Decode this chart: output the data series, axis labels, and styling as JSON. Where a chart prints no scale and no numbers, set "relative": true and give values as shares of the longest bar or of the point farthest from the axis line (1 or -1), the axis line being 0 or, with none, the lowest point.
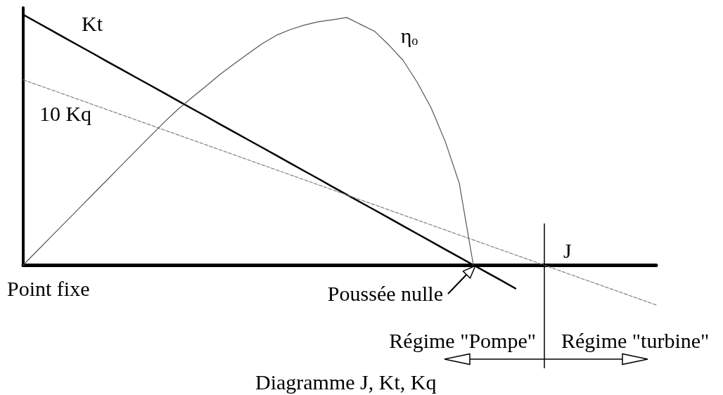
{
  "chart_data": {
    "type": "line",
    "title": "Diagramme J, Kt, Kq",
    "xlabel": "J",
    "relative": true,
    "categories": [
      null,
      null,
      null,
      null,
      null,
      null,
      null,
      null,
      null,
      null,
      null,
      null,
      null,
      null,
      null,
      null,
      null,
      null,
      null,
      null,
      null,
      null,
      null,
      null,
      null,
      null,
      null,
      null,
      null,
      null,
      null,
      null,
      null,
      null,
      null,
      null,
      null,
      null,
      null,
      null,
      null,
      null,
      null,
      null,
      null,
      null
    ],
    "series": [
      {
        "name": "Kt",
        "color": "#000000",
        "values": [
          1,
          0.969,
          0.938,
          0.906,
          0.875,
          0.844,
          0.812,
          0.781,
          0.75,
          0.719,
          0.688,
          0.656,
          0.625,
          0.594,
          0.562,
          0.531,
          0.5,
          0.469,
          0.438,
          0.406,
          0.375,
          0.344,
          0.312,
          0.281,
          0.25,
          0.219,
          0.188,
          0.156,
          0.125,
          0.094,
          0.062,
          0.031,
          0,
          -0.031,
          -0.062,
          -0.094,
          null,
          null,
          null,
          null,
          null,
          null,
          null,
          null,
          null,
          null
        ]
      },
      {
        "name": "10 Kq",
        "color": "#808080",
        "line_style": "dashed",
        "values": [
          0.74,
          0.72,
          0.7,
          0.68,
          0.66,
          0.64,
          0.62,
          0.6,
          0.58,
          0.56,
          0.54,
          0.52,
          0.5,
          0.48,
          0.46,
          0.44,
          0.42,
          0.4,
          0.38,
          0.36,
          0.34,
          0.32,
          0.3,
          0.28,
          0.26,
          0.24,
          0.22,
          0.2,
          0.18,
          0.16,
          0.14,
          0.12,
          0.1,
          0.08,
          0.06,
          0.04,
          0.02,
          0,
          -0.02,
          -0.04,
          -0.06,
          -0.08,
          -0.1,
          -0.12,
          -0.14,
          -0.16
        ]
      },
      {
        "name": "ηₒ",
        "color": "#555555",
        "values": [
          0,
          0.057,
          0.114,
          0.171,
          0.228,
          0.285,
          0.342,
          0.399,
          0.456,
          0.513,
          0.569,
          0.622,
          0.669,
          0.715,
          0.762,
          0.804,
          0.845,
          0.885,
          0.918,
          0.941,
          0.959,
          0.972,
          0.98,
          0.989,
          0.961,
          0.933,
          0.879,
          0.818,
          0.731,
          0.628,
          0.494,
          0.327,
          0,
          null,
          null,
          null,
          null,
          null,
          null,
          null,
          null,
          null,
          null,
          null,
          null,
          null
        ]
      }
    ],
    "annotations": [
      "Point fixe",
      "Poussée nulle",
      "Régime \"Pompe\"",
      "Régime \"turbine\""
    ],
    "marker": "none",
    "legend": false,
    "grid": false
  }
}
